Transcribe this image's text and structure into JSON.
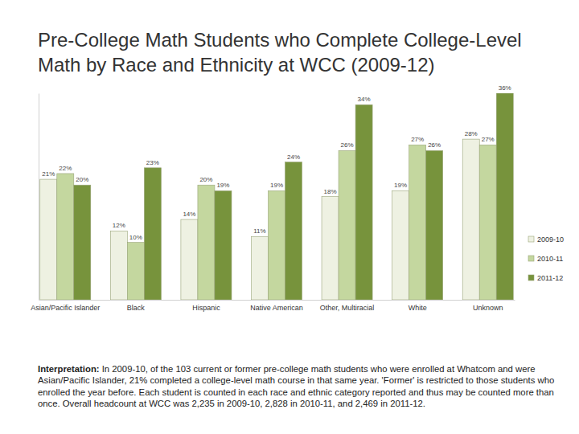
{
  "chart_data": {
    "type": "bar",
    "title": "Pre-College Math Students who Complete College-Level Math by Race and Ethnicity at WCC (2009-12)",
    "categories": [
      "Asian/Pacific Islander",
      "Black",
      "Hispanic",
      "Native American",
      "Other, Multiracial",
      "White",
      "Unknown"
    ],
    "series": [
      {
        "name": "2009-10",
        "color": "#eef1e2",
        "values": [
          21,
          12,
          14,
          11,
          18,
          19,
          28
        ],
        "value_labels": [
          "21%",
          "12%",
          "14%",
          "11%",
          "18%",
          "19%",
          "28%"
        ]
      },
      {
        "name": "2010-11",
        "color": "#c4d79f",
        "values": [
          22,
          10,
          20,
          19,
          26,
          27,
          27
        ],
        "value_labels": [
          "22%",
          "10%",
          "20%",
          "19%",
          "26%",
          "27%",
          "27%"
        ]
      },
      {
        "name": "2011-12",
        "color": "#77933c",
        "values": [
          20,
          23,
          19,
          24,
          34,
          26,
          36
        ],
        "value_labels": [
          "20%",
          "23%",
          "19%",
          "24%",
          "34%",
          "26%",
          "36%"
        ]
      }
    ],
    "ylim": [
      0,
      36
    ],
    "yticks": [],
    "tick_labels": "x",
    "grid": false,
    "legend": "right",
    "data_labels": true,
    "annotation_title": "Interpretation:",
    "annotation": "In 2009-10, of the 103 current or former pre-college math students who were enrolled at Whatcom and were Asian/Pacific Islander, 21% completed a college-level math course in that same year. 'Former' is restricted to those students who enrolled the year before. Each student is counted in each race and ethnic category reported and thus may be counted more than once. Overall headcount at WCC was 2,235 in 2009-10, 2,828 in 2010-11, and 2,469 in 2011-12."
  }
}
